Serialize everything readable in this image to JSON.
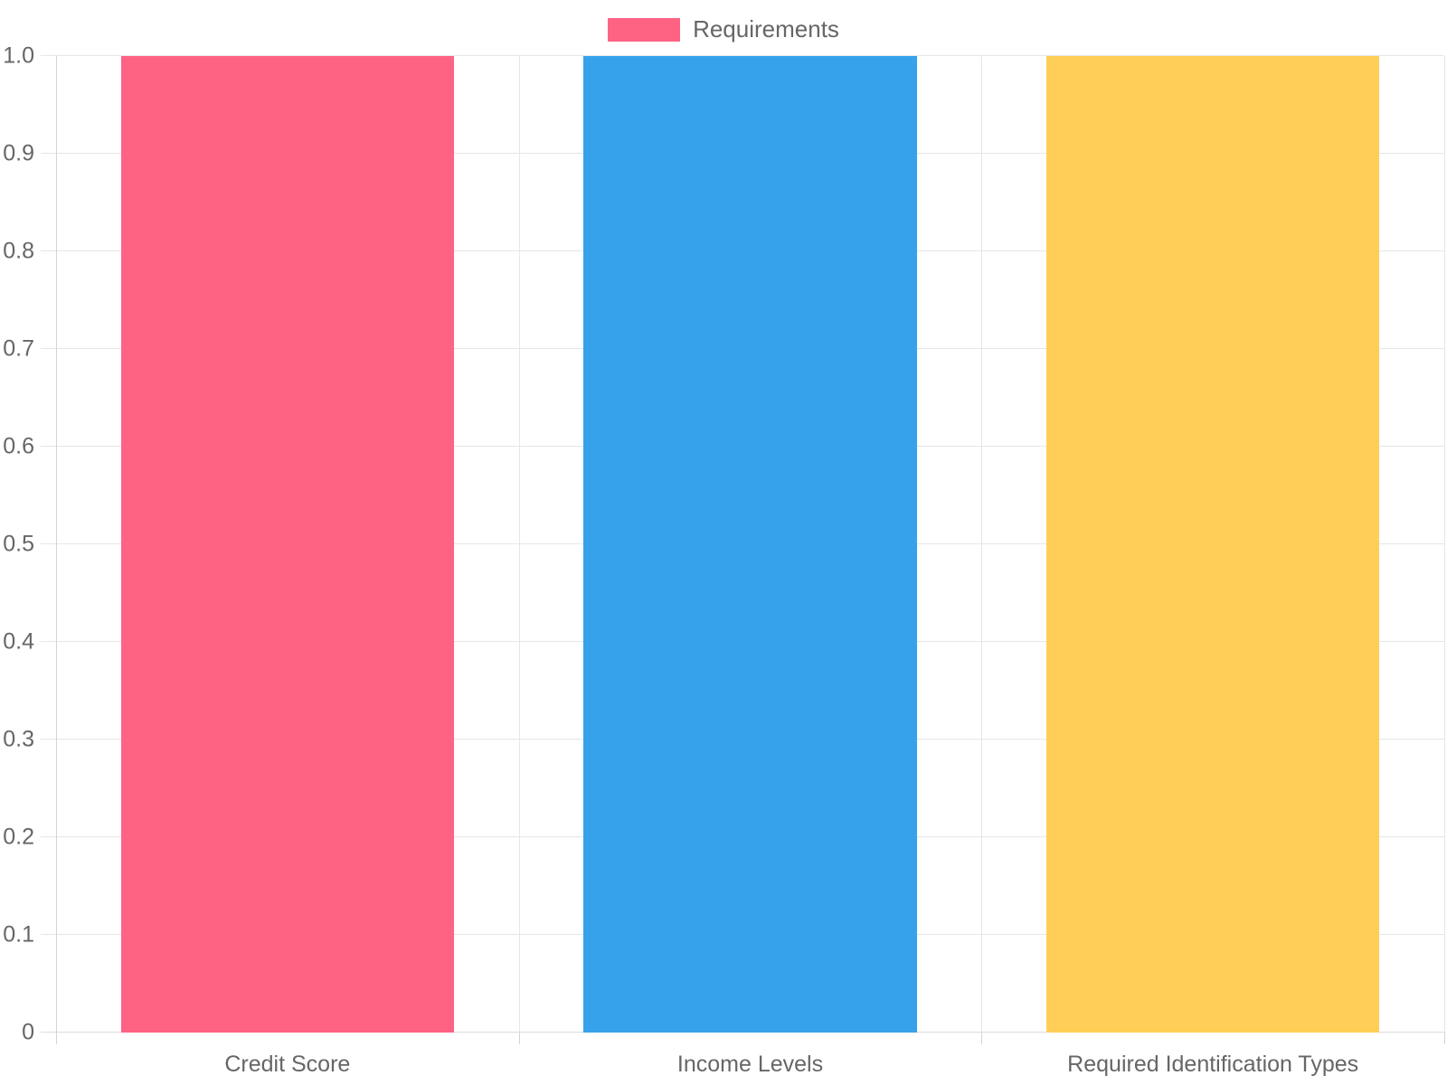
{
  "page": {
    "background": "#ffffff"
  },
  "legend": {
    "position": "top",
    "items": [
      {
        "label": "Requirements",
        "color": "#FF6384"
      }
    ]
  },
  "chart_data": {
    "type": "bar",
    "title": "",
    "xlabel": "",
    "ylabel": "",
    "categories": [
      "Credit Score",
      "Income Levels",
      "Required Identification Types"
    ],
    "series": [
      {
        "name": "Requirements",
        "values": [
          1.0,
          1.0,
          1.0
        ]
      }
    ],
    "bar_colors": [
      "#FF6384",
      "#36A2EB",
      "#FFCE56"
    ],
    "ylim": [
      0,
      1.0
    ],
    "y_ticks": [
      {
        "value": 0,
        "label": "0"
      },
      {
        "value": 0.1,
        "label": "0.1"
      },
      {
        "value": 0.2,
        "label": "0.2"
      },
      {
        "value": 0.3,
        "label": "0.3"
      },
      {
        "value": 0.4,
        "label": "0.4"
      },
      {
        "value": 0.5,
        "label": "0.5"
      },
      {
        "value": 0.6,
        "label": "0.6"
      },
      {
        "value": 0.7,
        "label": "0.7"
      },
      {
        "value": 0.8,
        "label": "0.8"
      },
      {
        "value": 0.9,
        "label": "0.9"
      },
      {
        "value": 1.0,
        "label": "1.0"
      }
    ],
    "grid": true,
    "legend_position": "top"
  },
  "styles": {
    "text_color": "#666666",
    "grid_color": "#e6e6e6",
    "axis_color": "#d4d4d4"
  }
}
